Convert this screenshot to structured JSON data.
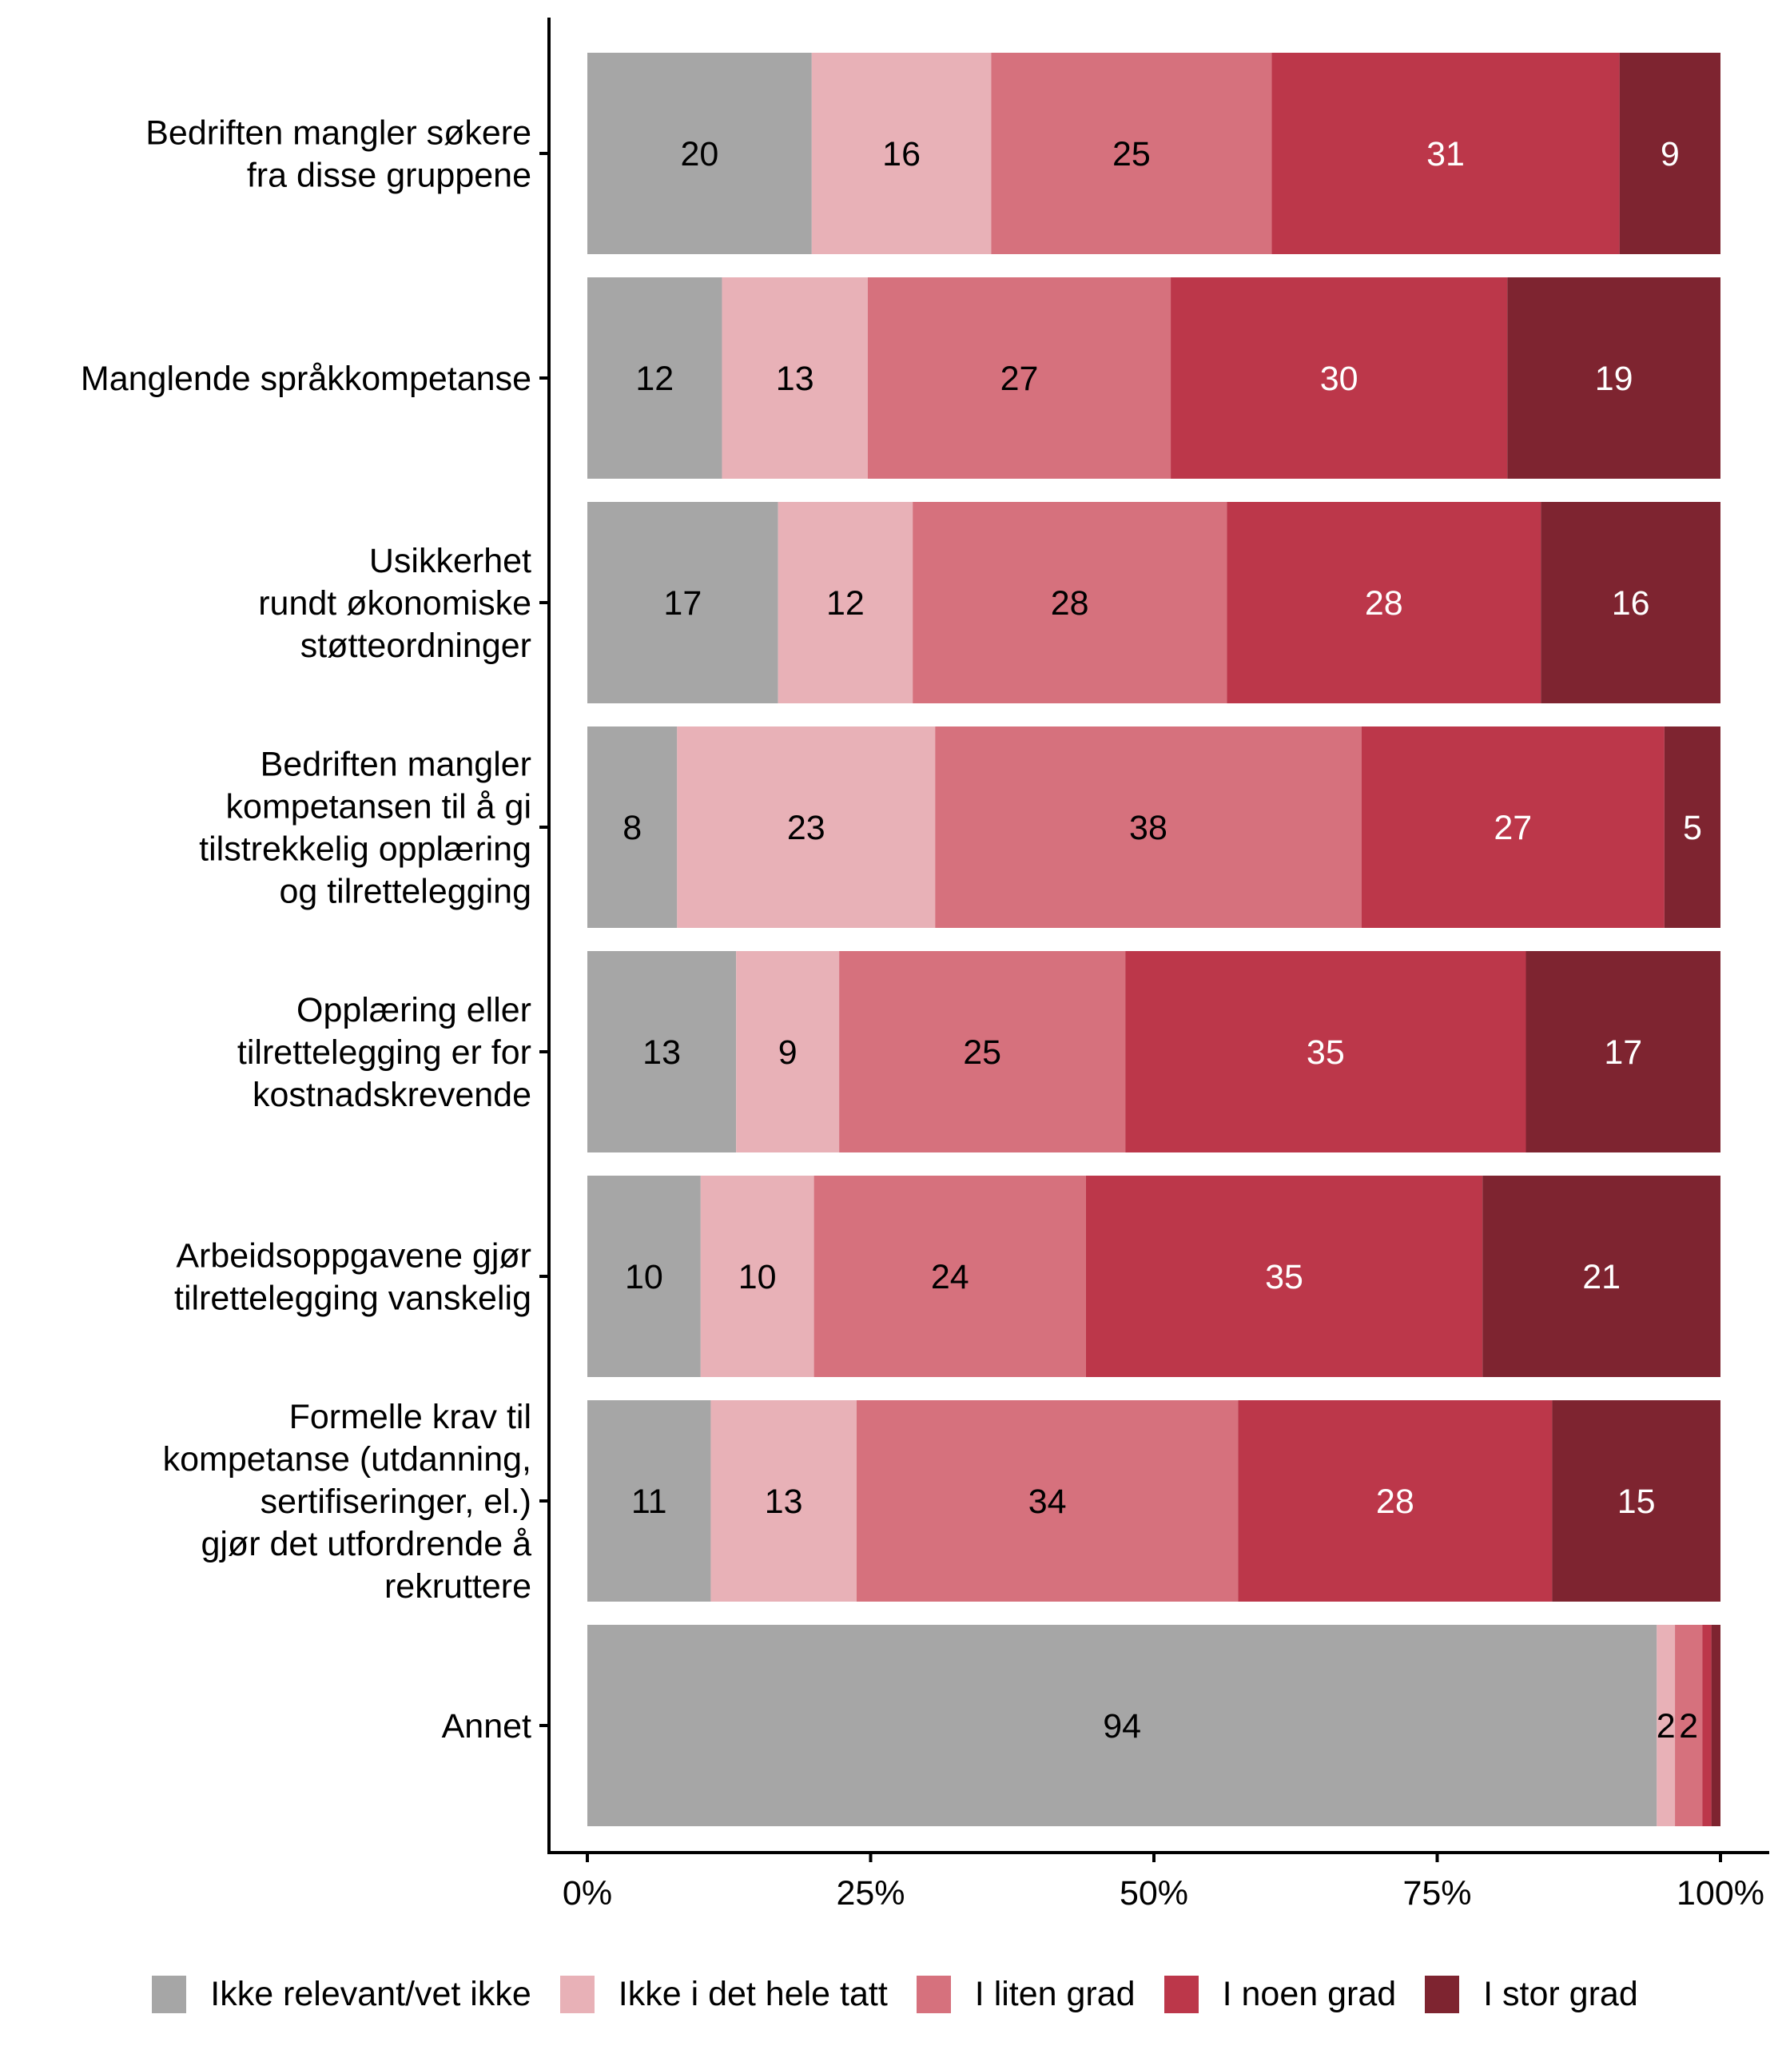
{
  "chart_data": {
    "type": "bar",
    "orientation": "horizontal",
    "stacked": true,
    "title": "",
    "xlabel": "",
    "ylabel": "",
    "xlim": [
      0,
      100
    ],
    "x_ticks": [
      "0%",
      "25%",
      "50%",
      "75%",
      "100%"
    ],
    "grid": false,
    "legend_position": "bottom",
    "categories": [
      [
        "Bedriften mangler søkere",
        "fra disse gruppene"
      ],
      [
        "Manglende språkkompetanse"
      ],
      [
        "Usikkerhet",
        "rundt økonomiske",
        "støtteordninger"
      ],
      [
        "Bedriften mangler",
        "kompetansen til å gi",
        "tilstrekkelig opplæring",
        "og tilrettelegging"
      ],
      [
        "Opplæring eller",
        "tilrettelegging er for",
        "kostnadskrevende"
      ],
      [
        "Arbeidsoppgavene gjør",
        "tilrettelegging vanskelig"
      ],
      [
        "Formelle krav til",
        "kompetanse (utdanning,",
        "sertifiseringer, el.)",
        "gjør det utfordrende å",
        "rekruttere"
      ],
      [
        "Annet"
      ]
    ],
    "series": [
      {
        "name": "Ikke relevant/vet ikke",
        "color": "#A6A6A6",
        "label_color": "#000000",
        "values": [
          20,
          12,
          17,
          8,
          13,
          10,
          11,
          94
        ],
        "labels": [
          "20",
          "12",
          "17",
          "8",
          "13",
          "10",
          "11",
          "94"
        ]
      },
      {
        "name": "Ikke i det hele tatt",
        "color": "#E8B1B7",
        "label_color": "#000000",
        "values": [
          16,
          13,
          12,
          23,
          9,
          10,
          13,
          1.6
        ],
        "labels": [
          "16",
          "13",
          "12",
          "23",
          "9",
          "10",
          "13",
          "2"
        ]
      },
      {
        "name": "I liten grad",
        "color": "#D6717D",
        "label_color": "#000000",
        "values": [
          25,
          27,
          28,
          38,
          25,
          24,
          34,
          2.4
        ],
        "labels": [
          "25",
          "27",
          "28",
          "38",
          "25",
          "24",
          "34",
          "2"
        ]
      },
      {
        "name": "I noen grad",
        "color": "#BC374A",
        "label_color": "#FFFFFF",
        "values": [
          31,
          30,
          28,
          27,
          35,
          35,
          28,
          0.8
        ],
        "labels": [
          "31",
          "30",
          "28",
          "27",
          "35",
          "35",
          "28",
          ""
        ]
      },
      {
        "name": "I stor grad",
        "color": "#7E2430",
        "label_color": "#FFFFFF",
        "values": [
          9,
          19,
          16,
          5,
          17,
          21,
          15,
          0.8
        ],
        "labels": [
          "9",
          "19",
          "16",
          "5",
          "17",
          "21",
          "15",
          ""
        ]
      }
    ]
  },
  "legend": {
    "items": [
      {
        "label": "Ikke relevant/vet ikke",
        "color": "#A6A6A6"
      },
      {
        "label": "Ikke i det hele tatt",
        "color": "#E8B1B7"
      },
      {
        "label": "I liten grad",
        "color": "#D6717D"
      },
      {
        "label": "I noen grad",
        "color": "#BC374A"
      },
      {
        "label": "I stor grad",
        "color": "#7E2430"
      }
    ]
  }
}
